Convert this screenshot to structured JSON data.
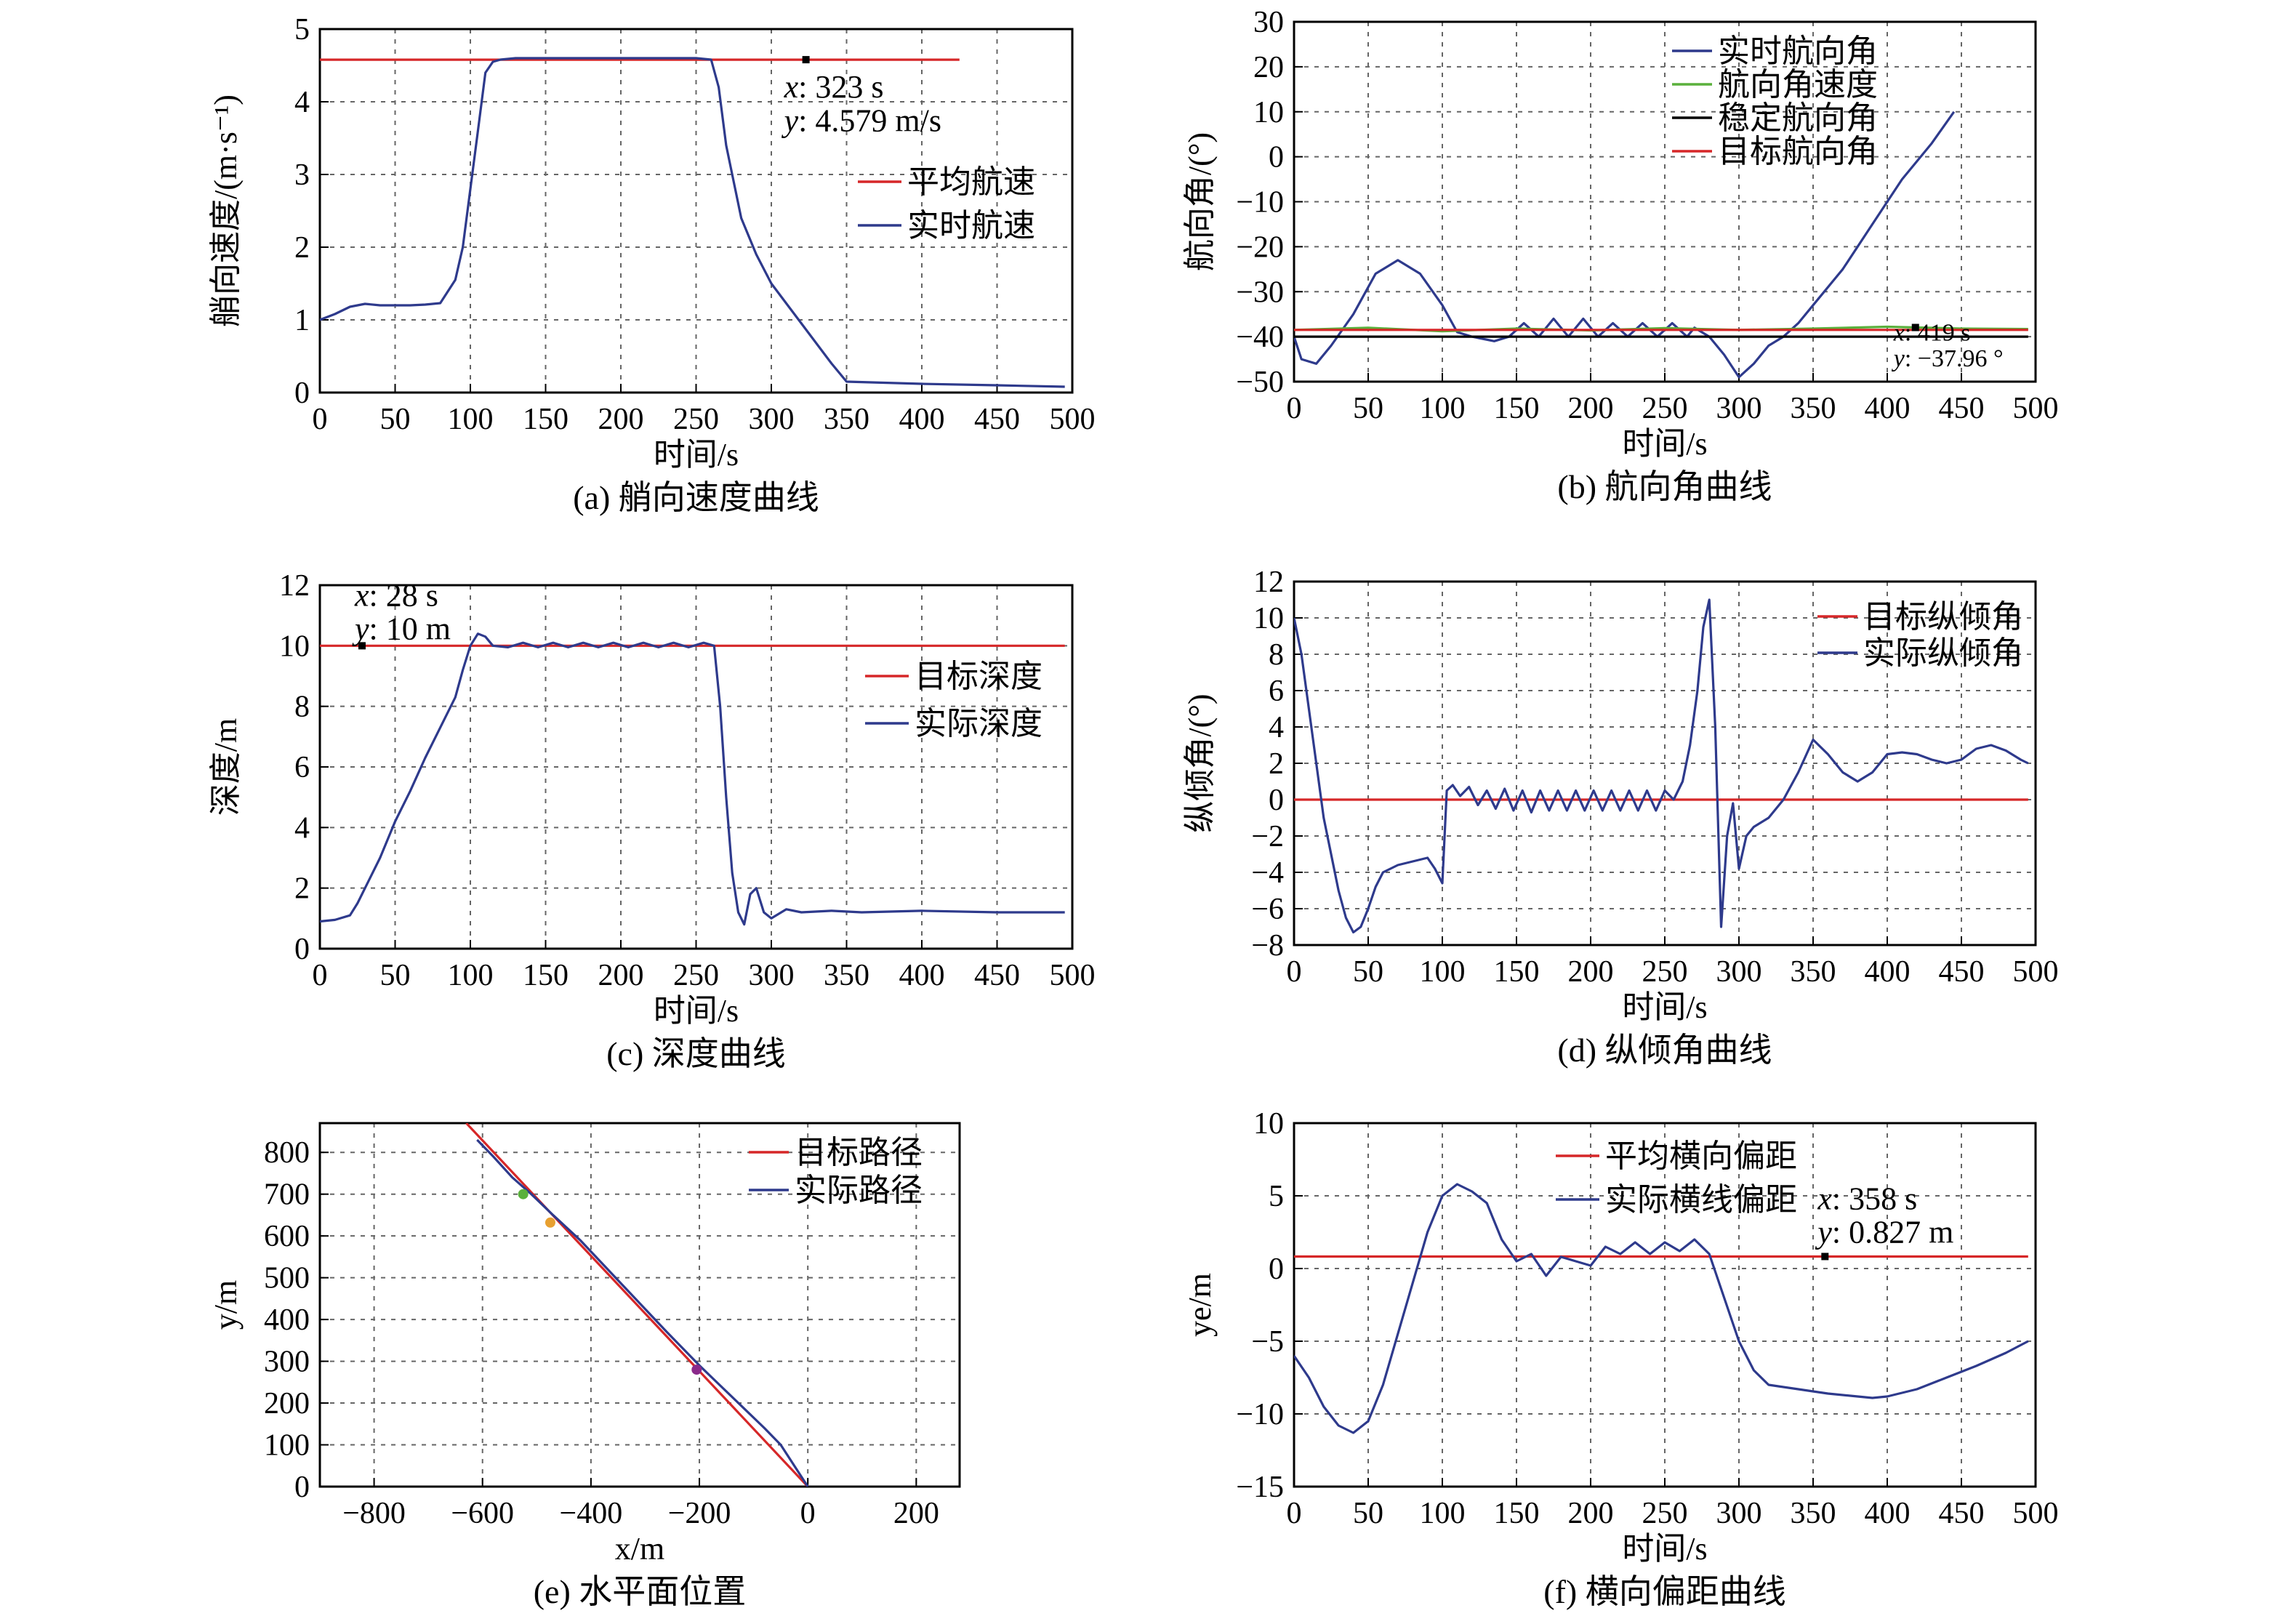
{
  "chart_data": [
    {
      "type": "line",
      "caption": "(a) 艄向速度曲线",
      "title": "",
      "xlabel": "时间/s",
      "ylabel": "艄向速度/(m·s⁻¹)",
      "xlim": [
        0,
        500
      ],
      "ylim": [
        0,
        5
      ],
      "xticks": [
        0,
        50,
        100,
        150,
        200,
        250,
        300,
        350,
        400,
        450,
        500
      ],
      "yticks": [
        0,
        1,
        2,
        3,
        4,
        5
      ],
      "grid": true,
      "legend_position": "right",
      "series": [
        {
          "name": "平均航速",
          "color": "#d62728",
          "x": [
            0,
            425
          ],
          "y": [
            4.579,
            4.579
          ]
        },
        {
          "name": "实时航速",
          "color": "#2e3a8c",
          "x": [
            0,
            10,
            20,
            30,
            40,
            50,
            60,
            70,
            80,
            90,
            95,
            100,
            105,
            110,
            115,
            120,
            130,
            150,
            200,
            250,
            260,
            265,
            270,
            280,
            290,
            300,
            320,
            340,
            350,
            400,
            450,
            495
          ],
          "y": [
            1.0,
            1.08,
            1.18,
            1.22,
            1.2,
            1.2,
            1.2,
            1.21,
            1.23,
            1.55,
            2.0,
            2.8,
            3.6,
            4.4,
            4.55,
            4.58,
            4.6,
            4.6,
            4.6,
            4.6,
            4.58,
            4.2,
            3.4,
            2.4,
            1.9,
            1.5,
            0.95,
            0.4,
            0.15,
            0.12,
            0.1,
            0.08
          ]
        }
      ],
      "annotation": {
        "x_label": "x",
        "x_value": "323 s",
        "y_label": "y",
        "y_value": "4.579 m/s",
        "x": 323,
        "y": 4.579
      }
    },
    {
      "type": "line",
      "caption": "(b) 航向角曲线",
      "title": "",
      "xlabel": "时间/s",
      "ylabel": "航向角/(°)",
      "xlim": [
        0,
        500
      ],
      "ylim": [
        -50,
        30
      ],
      "xticks": [
        0,
        50,
        100,
        150,
        200,
        250,
        300,
        350,
        400,
        450,
        500
      ],
      "yticks": [
        -50,
        -40,
        -30,
        -20,
        -10,
        0,
        10,
        20,
        30
      ],
      "grid": true,
      "legend_position": "top-right",
      "series": [
        {
          "name": "实时航向角",
          "color": "#2e3a8c",
          "x": [
            0,
            5,
            15,
            25,
            40,
            55,
            70,
            85,
            100,
            110,
            120,
            135,
            145,
            155,
            165,
            175,
            185,
            195,
            205,
            215,
            225,
            235,
            245,
            255,
            265,
            270,
            280,
            290,
            300,
            310,
            320,
            330,
            340,
            350,
            370,
            390,
            410,
            430,
            445
          ],
          "y": [
            -40,
            -45,
            -46,
            -42,
            -35,
            -26,
            -23,
            -26,
            -33,
            -39,
            -40,
            -41,
            -40,
            -37,
            -40,
            -36,
            -40,
            -36,
            -40,
            -37,
            -40,
            -37,
            -40,
            -37,
            -40,
            -38,
            -40,
            -44,
            -49,
            -46,
            -42,
            -40,
            -37,
            -33,
            -25,
            -15,
            -5,
            3,
            10
          ]
        },
        {
          "name": "航向角速度",
          "color": "#5ab03c",
          "x": [
            0,
            50,
            100,
            150,
            200,
            250,
            300,
            350,
            400,
            450,
            495
          ],
          "y": [
            -38.5,
            -38,
            -38.8,
            -38.2,
            -38.6,
            -38.1,
            -38.5,
            -38.2,
            -37.8,
            -38.2,
            -38.3
          ]
        },
        {
          "name": "稳定航向角",
          "color": "#000000",
          "x": [
            0,
            495
          ],
          "y": [
            -40,
            -40
          ]
        },
        {
          "name": "目标航向角",
          "color": "#d62728",
          "x": [
            0,
            495
          ],
          "y": [
            -38.5,
            -38.5
          ]
        }
      ],
      "annotation": {
        "x_label": "x",
        "x_value": "419 s",
        "y_label": "y",
        "y_value": "−37.96 °",
        "x": 419,
        "y": -37.96
      }
    },
    {
      "type": "line",
      "caption": "(c) 深度曲线",
      "title": "",
      "xlabel": "时间/s",
      "ylabel": "深度/m",
      "xlim": [
        0,
        500
      ],
      "ylim": [
        0,
        12
      ],
      "xticks": [
        0,
        50,
        100,
        150,
        200,
        250,
        300,
        350,
        400,
        450,
        500
      ],
      "yticks": [
        0,
        2,
        4,
        6,
        8,
        10,
        12
      ],
      "grid": true,
      "legend_position": "right",
      "series": [
        {
          "name": "目标深度",
          "color": "#d62728",
          "x": [
            0,
            495
          ],
          "y": [
            10,
            10
          ]
        },
        {
          "name": "实际深度",
          "color": "#2e3a8c",
          "x": [
            0,
            10,
            20,
            25,
            30,
            40,
            50,
            60,
            70,
            80,
            90,
            95,
            100,
            105,
            110,
            115,
            125,
            135,
            145,
            155,
            165,
            175,
            185,
            195,
            205,
            215,
            225,
            235,
            245,
            255,
            262,
            266,
            270,
            274,
            278,
            282,
            286,
            290,
            295,
            300,
            310,
            320,
            340,
            360,
            400,
            450,
            495
          ],
          "y": [
            0.9,
            0.95,
            1.1,
            1.5,
            2.0,
            3.0,
            4.2,
            5.2,
            6.3,
            7.3,
            8.3,
            9.2,
            10.0,
            10.4,
            10.3,
            10.0,
            9.95,
            10.1,
            9.95,
            10.1,
            9.95,
            10.1,
            9.95,
            10.1,
            9.95,
            10.1,
            9.95,
            10.1,
            9.95,
            10.1,
            10.0,
            8.0,
            5.0,
            2.5,
            1.2,
            0.8,
            1.8,
            2.0,
            1.2,
            1.0,
            1.3,
            1.2,
            1.25,
            1.2,
            1.25,
            1.2,
            1.2
          ]
        }
      ],
      "annotation": {
        "x_label": "x",
        "x_value": "28 s",
        "y_label": "y",
        "y_value": "10 m",
        "x": 28,
        "y": 10
      }
    },
    {
      "type": "line",
      "caption": "(d) 纵倾角曲线",
      "title": "",
      "xlabel": "时间/s",
      "ylabel": "纵倾角/(°)",
      "xlim": [
        0,
        500
      ],
      "ylim": [
        -8,
        12
      ],
      "xticks": [
        0,
        50,
        100,
        150,
        200,
        250,
        300,
        350,
        400,
        450,
        500
      ],
      "yticks": [
        -8,
        -6,
        -4,
        -2,
        0,
        2,
        4,
        6,
        8,
        10,
        12
      ],
      "grid": true,
      "legend_position": "top-right",
      "series": [
        {
          "name": "目标纵倾角",
          "color": "#d62728",
          "x": [
            0,
            495
          ],
          "y": [
            0,
            0
          ]
        },
        {
          "name": "实际纵倾角",
          "color": "#2e3a8c",
          "x": [
            0,
            5,
            10,
            15,
            20,
            25,
            30,
            35,
            40,
            45,
            50,
            55,
            60,
            70,
            80,
            90,
            95,
            100,
            103,
            107,
            112,
            118,
            124,
            130,
            136,
            142,
            148,
            154,
            160,
            166,
            172,
            178,
            184,
            190,
            196,
            202,
            208,
            214,
            220,
            226,
            232,
            238,
            244,
            250,
            256,
            262,
            267,
            272,
            276,
            280,
            284,
            288,
            292,
            296,
            300,
            305,
            310,
            320,
            330,
            340,
            350,
            360,
            370,
            380,
            390,
            400,
            410,
            420,
            430,
            440,
            450,
            460,
            470,
            480,
            490,
            495
          ],
          "y": [
            10,
            8,
            5,
            2,
            -1,
            -3,
            -5,
            -6.5,
            -7.3,
            -7,
            -6,
            -4.8,
            -4.0,
            -3.6,
            -3.4,
            -3.2,
            -3.8,
            -4.6,
            0.5,
            0.8,
            0.2,
            0.7,
            -0.3,
            0.5,
            -0.5,
            0.6,
            -0.6,
            0.5,
            -0.7,
            0.5,
            -0.6,
            0.5,
            -0.6,
            0.5,
            -0.6,
            0.5,
            -0.6,
            0.5,
            -0.6,
            0.5,
            -0.6,
            0.5,
            -0.6,
            0.5,
            0.0,
            1.0,
            3.0,
            6.0,
            9.5,
            11.0,
            4.0,
            -7.0,
            -2.0,
            -0.2,
            -3.8,
            -2.0,
            -1.5,
            -1.0,
            0.0,
            1.5,
            3.3,
            2.5,
            1.5,
            1.0,
            1.5,
            2.5,
            2.6,
            2.5,
            2.2,
            2.0,
            2.2,
            2.8,
            3.0,
            2.7,
            2.2,
            2.0
          ]
        }
      ]
    },
    {
      "type": "line",
      "caption": "(e) 水平面位置",
      "title": "",
      "xlabel": "x/m",
      "ylabel": "y/m",
      "xlim": [
        -900,
        280
      ],
      "ylim": [
        0,
        870
      ],
      "xticks": [
        -800,
        -600,
        -400,
        -200,
        0,
        200
      ],
      "yticks": [
        0,
        100,
        200,
        300,
        400,
        500,
        600,
        700,
        800
      ],
      "grid": true,
      "legend_position": "top-right",
      "series": [
        {
          "name": "目标路径",
          "color": "#d62728",
          "x": [
            0,
            -630
          ],
          "y": [
            0,
            870
          ]
        },
        {
          "name": "实际路径",
          "color": "#2e3a8c",
          "x": [
            0,
            -20,
            -50,
            -80,
            -120,
            -160,
            -200,
            -260,
            -340,
            -420,
            -470,
            -510,
            -545,
            -580,
            -610
          ],
          "y": [
            0,
            40,
            100,
            140,
            190,
            240,
            290,
            370,
            480,
            590,
            650,
            700,
            740,
            790,
            830
          ]
        }
      ],
      "markers": [
        {
          "x": -525,
          "y": 700,
          "color": "#5ab03c"
        },
        {
          "x": -475,
          "y": 632,
          "color": "#e8a030"
        },
        {
          "x": -205,
          "y": 280,
          "color": "#8b2a8b"
        }
      ]
    },
    {
      "type": "line",
      "caption": "(f) 横向偏距曲线",
      "title": "",
      "xlabel": "时间/s",
      "ylabel": "ye/m",
      "xlim": [
        0,
        500
      ],
      "ylim": [
        -15,
        10
      ],
      "xticks": [
        0,
        50,
        100,
        150,
        200,
        250,
        300,
        350,
        400,
        450,
        500
      ],
      "yticks": [
        -15,
        -10,
        -5,
        0,
        5,
        10
      ],
      "grid": true,
      "legend_position": "top-right",
      "series": [
        {
          "name": "平均横向偏距",
          "color": "#d62728",
          "x": [
            0,
            495
          ],
          "y": [
            0.827,
            0.827
          ]
        },
        {
          "name": "实际横线偏距",
          "color": "#2e3a8c",
          "x": [
            0,
            10,
            20,
            30,
            40,
            50,
            60,
            70,
            80,
            90,
            100,
            110,
            120,
            130,
            140,
            150,
            160,
            170,
            180,
            190,
            200,
            210,
            220,
            230,
            240,
            250,
            260,
            270,
            280,
            290,
            300,
            310,
            320,
            340,
            360,
            380,
            390,
            400,
            420,
            440,
            460,
            480,
            495
          ],
          "y": [
            -6,
            -7.5,
            -9.5,
            -10.8,
            -11.3,
            -10.5,
            -8,
            -4.5,
            -1,
            2.5,
            5,
            5.8,
            5.3,
            4.5,
            2.0,
            0.5,
            1.0,
            -0.5,
            0.8,
            0.5,
            0.2,
            1.5,
            1.0,
            1.8,
            1.0,
            1.8,
            1.2,
            2.0,
            1.0,
            -2.0,
            -5.0,
            -7.0,
            -8.0,
            -8.3,
            -8.6,
            -8.8,
            -8.9,
            -8.8,
            -8.3,
            -7.5,
            -6.7,
            -5.8,
            -5.0
          ]
        }
      ],
      "annotation": {
        "x_label": "x",
        "x_value": "358 s",
        "y_label": "y",
        "y_value": "0.827 m",
        "x": 358,
        "y": 0.827
      }
    }
  ]
}
